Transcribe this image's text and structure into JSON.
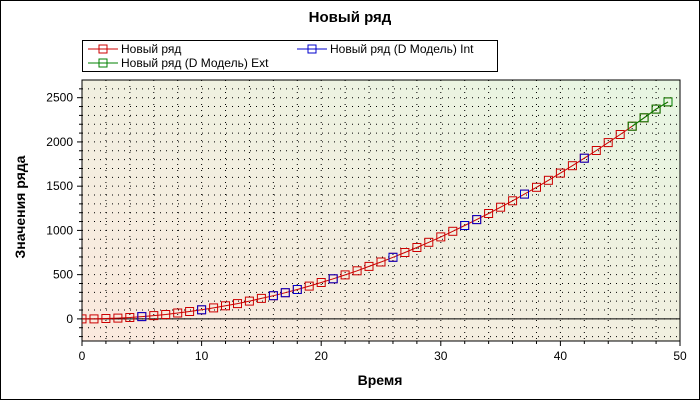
{
  "chart_data": {
    "type": "line",
    "title": "Новый ряд",
    "xlabel": "Время",
    "ylabel": "Значения ряда",
    "xlim": [
      0,
      50
    ],
    "ylim": [
      -250,
      2700
    ],
    "xticks": [
      "0",
      "10",
      "20",
      "30",
      "40",
      "50"
    ],
    "yticks": [
      "0",
      "500",
      "1000",
      "1500",
      "2000",
      "2500"
    ],
    "grid": true,
    "legend_position": "top",
    "series": [
      {
        "name": "Новый ряд",
        "color": "#cc0000",
        "x": [
          0,
          1,
          2,
          3,
          4,
          5,
          6,
          7,
          8,
          9,
          10,
          11,
          12,
          13,
          14,
          15,
          16,
          17,
          18,
          19,
          20,
          21,
          22,
          23,
          24,
          25,
          26,
          27,
          28,
          29,
          30,
          31,
          32,
          33,
          34,
          35,
          36,
          37,
          38,
          39,
          40,
          41,
          42,
          43,
          44,
          45,
          46,
          47,
          48,
          49
        ],
        "y": [
          0,
          0,
          4,
          9,
          16,
          26,
          37,
          50,
          66,
          83,
          103,
          124,
          148,
          173,
          201,
          231,
          262,
          296,
          332,
          371,
          411,
          453,
          497,
          544,
          593,
          643,
          696,
          750,
          807,
          866,
          927,
          990,
          1055,
          1122,
          1191,
          1262,
          1335,
          1410,
          1487,
          1566,
          1648,
          1731,
          1816,
          1903,
          1993,
          2084,
          2178,
          2273,
          2371,
          2453
        ]
      },
      {
        "name": "Новый ряд (D Модель) Ext",
        "color": "#008000",
        "x": [
          46,
          47,
          48,
          49
        ],
        "y": [
          2178,
          2273,
          2371,
          2453
        ]
      },
      {
        "name": "Новый ряд (D Модель) Int",
        "color": "#0000cc",
        "x": [
          5,
          10,
          16,
          17,
          18,
          21,
          26,
          32,
          33,
          37,
          42
        ],
        "y": [
          26,
          103,
          262,
          296,
          332,
          453,
          696,
          1055,
          1122,
          1410,
          1816
        ]
      }
    ]
  },
  "colors": {
    "plot_gradient_start": "#fbe9de",
    "plot_gradient_end": "#e7f6e2"
  }
}
